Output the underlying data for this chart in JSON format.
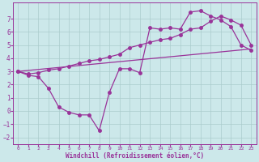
{
  "xlabel": "Windchill (Refroidissement éolien,°C)",
  "background_color": "#cce8ea",
  "grid_color": "#aacccc",
  "line_color": "#993399",
  "xlim": [
    -0.5,
    23.5
  ],
  "ylim": [
    -2.5,
    8.2
  ],
  "yticks": [
    -2,
    -1,
    0,
    1,
    2,
    3,
    4,
    5,
    6,
    7
  ],
  "xticks": [
    0,
    1,
    2,
    3,
    4,
    5,
    6,
    7,
    8,
    9,
    10,
    11,
    12,
    13,
    14,
    15,
    16,
    17,
    18,
    19,
    20,
    21,
    22,
    23
  ],
  "series1_x": [
    0,
    1,
    2,
    3,
    4,
    5,
    6,
    7,
    8,
    9,
    10,
    11,
    12,
    13,
    14,
    15,
    16,
    17,
    18,
    19,
    20,
    21,
    22,
    23
  ],
  "series1_y": [
    3.0,
    2.7,
    2.6,
    1.7,
    0.3,
    -0.1,
    -0.3,
    -0.3,
    -1.5,
    1.4,
    3.2,
    3.2,
    2.9,
    6.3,
    6.2,
    6.3,
    6.2,
    7.5,
    7.6,
    7.2,
    6.9,
    6.4,
    5.0,
    4.6
  ],
  "series2_x": [
    0,
    23
  ],
  "series2_y": [
    3.0,
    4.7
  ],
  "series3_x": [
    0,
    1,
    2,
    3,
    4,
    5,
    6,
    7,
    8,
    9,
    10,
    11,
    12,
    13,
    14,
    15,
    16,
    17,
    18,
    19,
    20,
    21,
    22,
    23
  ],
  "series3_y": [
    3.0,
    2.8,
    2.9,
    3.1,
    3.2,
    3.4,
    3.6,
    3.8,
    3.9,
    4.1,
    4.3,
    4.8,
    5.0,
    5.2,
    5.4,
    5.5,
    5.8,
    6.2,
    6.3,
    6.8,
    7.2,
    6.9,
    6.5,
    5.0
  ]
}
